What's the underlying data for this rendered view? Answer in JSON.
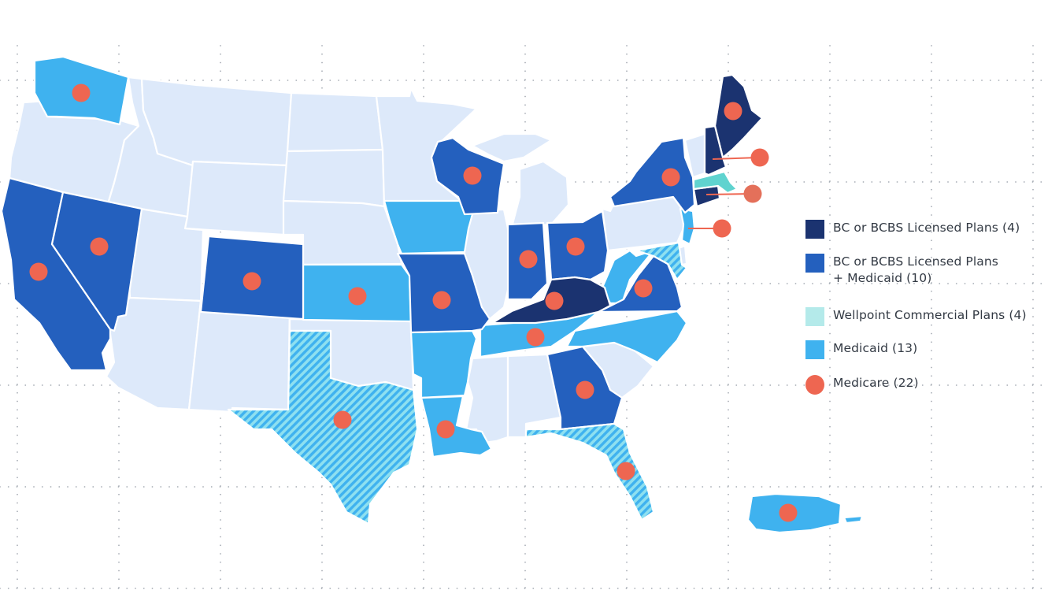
{
  "colors": {
    "bc_bcbs": "#1b3370",
    "bc_bcbs_medicaid": "#2460be",
    "wellpoint_commercial": "#5fd3cf",
    "wellpoint_commercial_swatch": "#b4eaea",
    "medicaid": "#3fb2ef",
    "medicare": "#ee6651",
    "none": "#dde9fa",
    "grid_dot": "#9aa0a8",
    "legend_text": "#333a44"
  },
  "legend": {
    "items": [
      {
        "key": "bc_bcbs",
        "label": "BC or BCBS Licensed Plans (4)",
        "label_line2": ""
      },
      {
        "key": "bc_bcbs_medicaid",
        "label": "BC or BCBS Licensed Plans",
        "label_line2": "+ Medicaid (10)"
      },
      {
        "key": "wellpoint_commercial",
        "label": "Wellpoint Commercial Plans (4)",
        "label_line2": ""
      },
      {
        "key": "medicaid",
        "label": "Medicaid (13)",
        "label_line2": ""
      },
      {
        "key": "medicare",
        "label": "Medicare (22)",
        "label_line2": ""
      }
    ]
  },
  "chart_data": {
    "type": "choropleth-map",
    "title": "",
    "legend_position": "right",
    "categories": [
      {
        "name": "BC or BCBS Licensed Plans",
        "count": 4,
        "states": [
          "ME",
          "NH",
          "CT",
          "KY"
        ]
      },
      {
        "name": "BC or BCBS Licensed Plans + Medicaid",
        "count": 10,
        "states": [
          "CA",
          "NV",
          "CO",
          "WI",
          "MO",
          "IN",
          "OH",
          "VA",
          "NY",
          "GA"
        ]
      },
      {
        "name": "Wellpoint Commercial Plans",
        "count": 4,
        "states": [
          "MA",
          "TX",
          "FL",
          "MD"
        ]
      },
      {
        "name": "Medicaid",
        "count": 13,
        "states": [
          "WA",
          "IA",
          "KS",
          "AR",
          "LA",
          "TN",
          "NC",
          "WV",
          "NJ",
          "TX",
          "FL",
          "MD",
          "PR"
        ]
      },
      {
        "name": "Medicare",
        "count": 22,
        "markers": [
          "WA",
          "CA",
          "NV",
          "CO",
          "KS",
          "TX",
          "WI",
          "MO",
          "LA",
          "IN",
          "OH",
          "KY",
          "TN",
          "GA",
          "FL",
          "VA",
          "NY",
          "ME",
          "NH",
          "CT",
          "NJ",
          "PR"
        ]
      }
    ],
    "hatched_states_note": "TX, FL, MD shown with diagonal hatch (Wellpoint Commercial + Medicaid)"
  }
}
